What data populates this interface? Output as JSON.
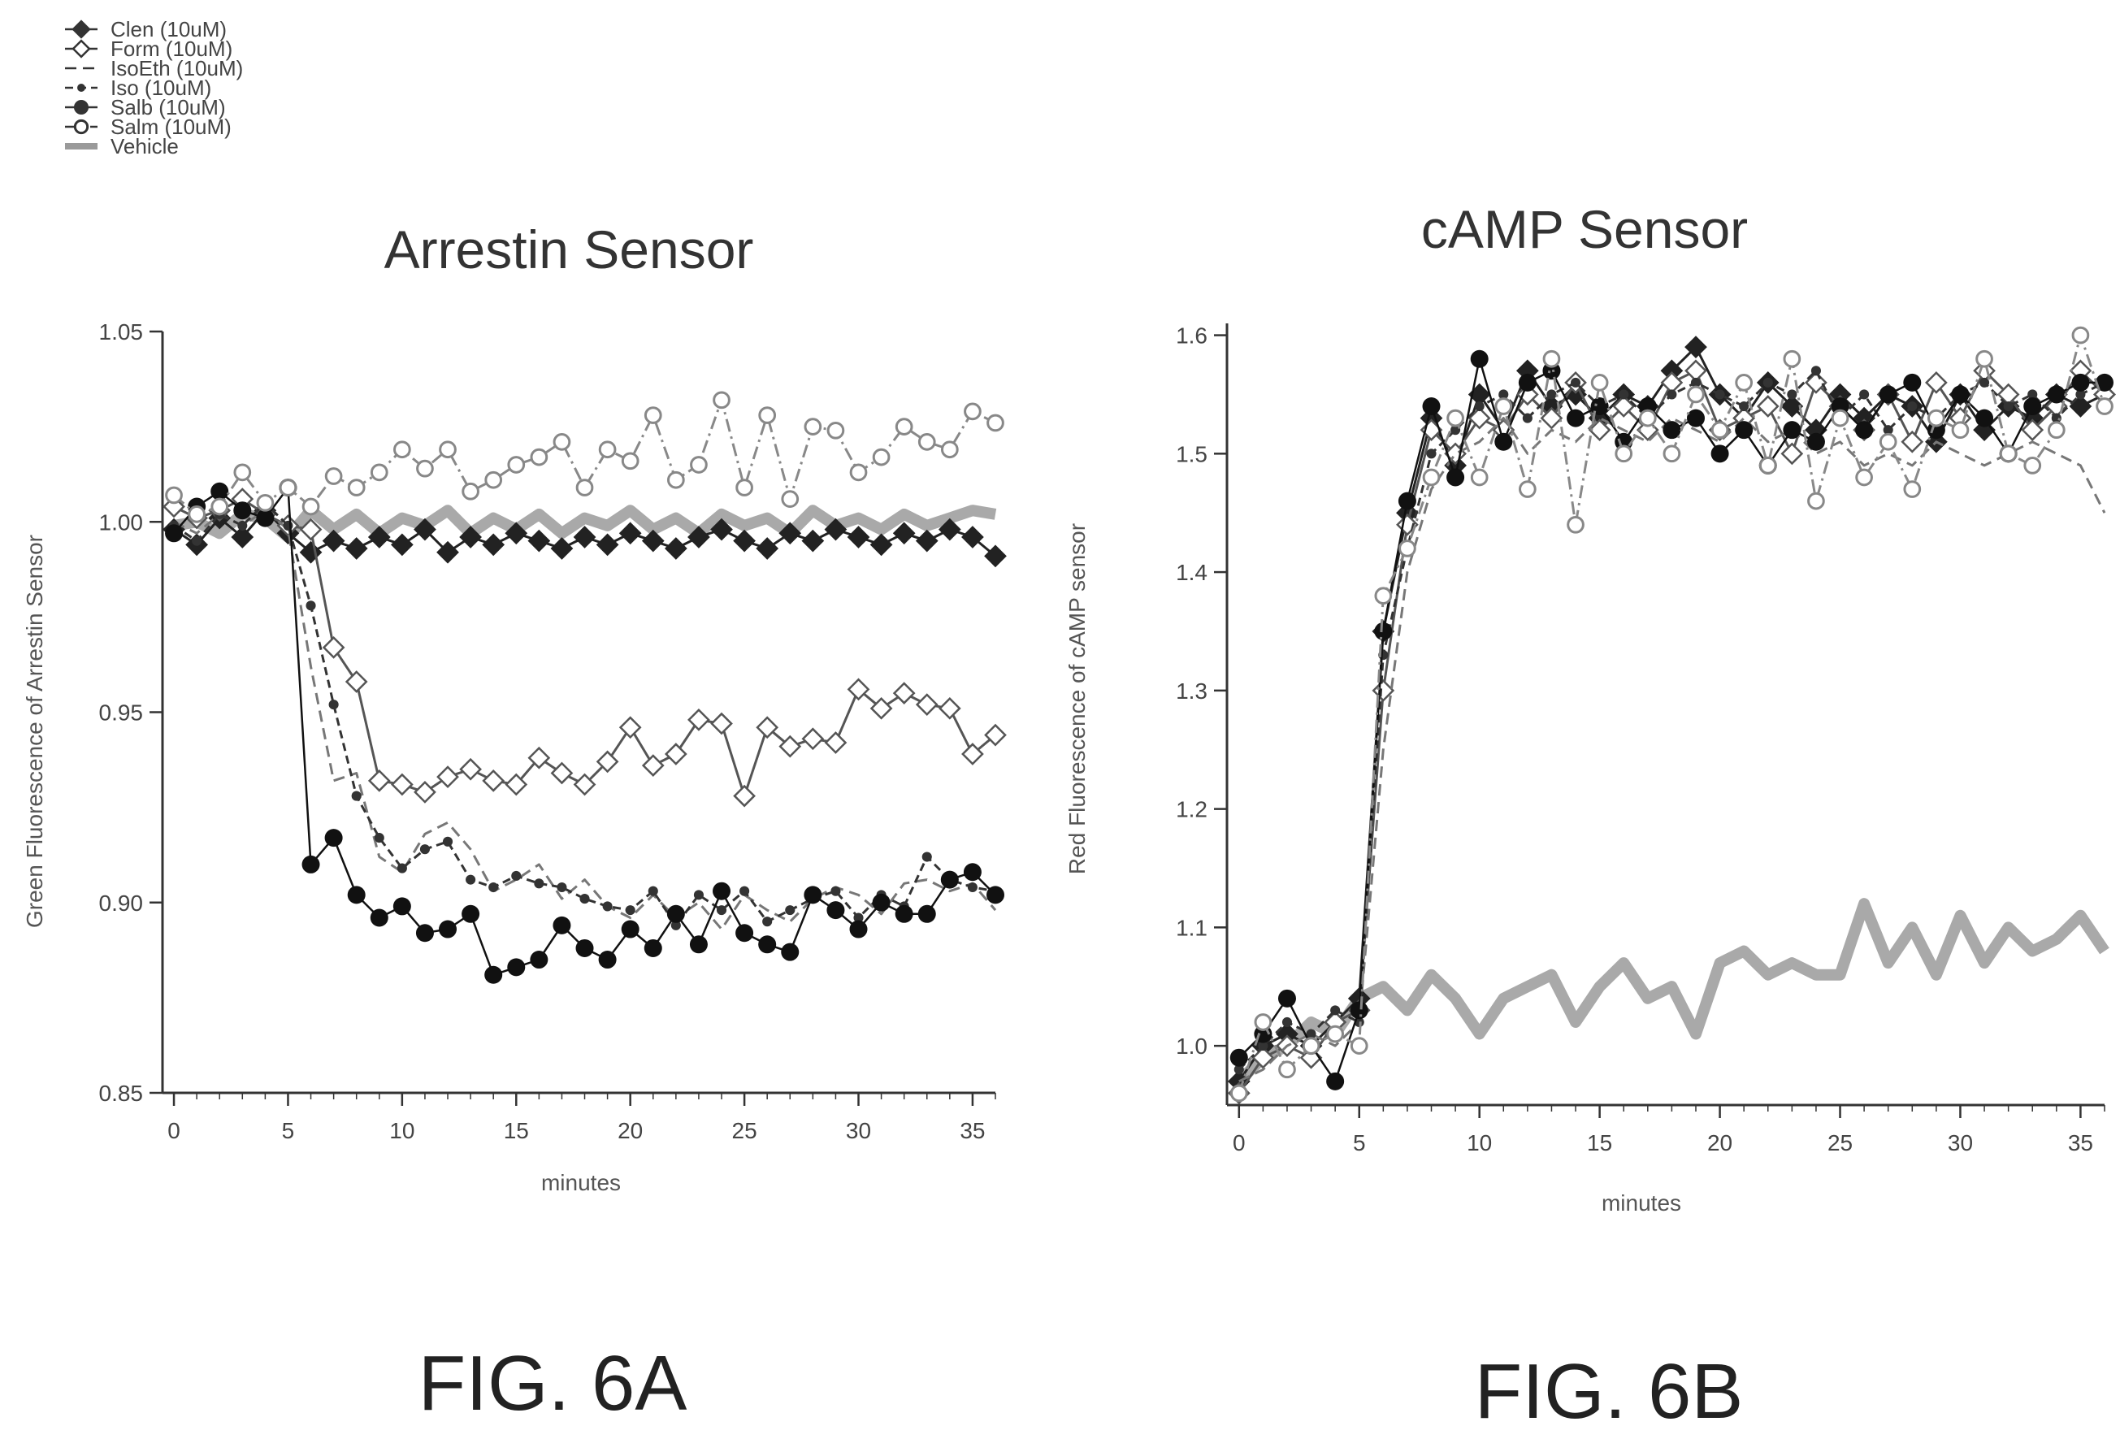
{
  "figure": {
    "caption_a": "FIG. 6A",
    "caption_b": "FIG. 6B"
  },
  "legend": {
    "items": [
      {
        "label": "Clen (10uM)",
        "marker": "diamond",
        "line": "solid"
      },
      {
        "label": "Form (10uM)",
        "marker": "open-diamond",
        "line": "solid"
      },
      {
        "label": "IsoEth (10uM)",
        "marker": "none",
        "line": "dash"
      },
      {
        "label": "Iso (10uM)",
        "marker": "small-circle",
        "line": "dash"
      },
      {
        "label": "Salb (10uM)",
        "marker": "filled-circle",
        "line": "solid"
      },
      {
        "label": "Salm (10uM)",
        "marker": "open-circle",
        "line": "dashdot"
      },
      {
        "label": "Vehicle",
        "marker": "none",
        "line": "thick"
      }
    ]
  },
  "chart_data": [
    {
      "type": "line",
      "title": "Arrestin Sensor",
      "xlabel": "minutes",
      "ylabel": "Green Fluorescence of Arrestin Sensor",
      "xlim": [
        -0.5,
        36
      ],
      "ylim": [
        0.85,
        1.05
      ],
      "xticks": [
        0,
        5,
        10,
        15,
        20,
        25,
        30,
        35
      ],
      "yticks": [
        0.85,
        0.9,
        0.95,
        1.0,
        1.05
      ],
      "ytick_labels": [
        "0.85",
        "0.90",
        "0.95",
        "1.00",
        "1.05"
      ],
      "grid": false,
      "legend_position": "top-left (above chart)",
      "x": [
        0,
        1,
        2,
        3,
        4,
        5,
        6,
        7,
        8,
        9,
        10,
        11,
        12,
        13,
        14,
        15,
        16,
        17,
        18,
        19,
        20,
        21,
        22,
        23,
        24,
        25,
        26,
        27,
        28,
        29,
        30,
        31,
        32,
        33,
        34,
        35,
        36
      ],
      "series": [
        {
          "name": "Clen (10uM)",
          "values": [
            0.998,
            0.994,
            1.001,
            0.996,
            1.003,
            0.997,
            0.992,
            0.995,
            0.993,
            0.996,
            0.994,
            0.998,
            0.992,
            0.996,
            0.994,
            0.997,
            0.995,
            0.993,
            0.996,
            0.994,
            0.997,
            0.995,
            0.993,
            0.996,
            0.998,
            0.995,
            0.993,
            0.997,
            0.995,
            0.998,
            0.996,
            0.994,
            0.997,
            0.995,
            0.998,
            0.996,
            0.991
          ]
        },
        {
          "name": "Form (10uM)",
          "values": [
            1.004,
            1.001,
            1.003,
            1.006,
            1.002,
            0.999,
            0.998,
            0.967,
            0.958,
            0.932,
            0.931,
            0.929,
            0.933,
            0.935,
            0.932,
            0.931,
            0.938,
            0.934,
            0.931,
            0.937,
            0.946,
            0.936,
            0.939,
            0.948,
            0.947,
            0.928,
            0.946,
            0.941,
            0.943,
            0.942,
            0.956,
            0.951,
            0.955,
            0.952,
            0.951,
            0.939,
            0.944
          ]
        },
        {
          "name": "IsoEth (10uM)",
          "values": [
            1.0,
            0.997,
            1.002,
            0.999,
            1.003,
            0.998,
            0.962,
            0.932,
            0.934,
            0.912,
            0.908,
            0.918,
            0.921,
            0.914,
            0.903,
            0.906,
            0.91,
            0.901,
            0.906,
            0.899,
            0.896,
            0.902,
            0.896,
            0.9,
            0.893,
            0.902,
            0.898,
            0.895,
            0.901,
            0.904,
            0.902,
            0.897,
            0.905,
            0.906,
            0.903,
            0.905,
            0.898
          ]
        },
        {
          "name": "Iso (10uM)",
          "values": [
            0.999,
            0.995,
            1.002,
            0.999,
            1.005,
            0.999,
            0.978,
            0.952,
            0.928,
            0.917,
            0.909,
            0.914,
            0.916,
            0.906,
            0.904,
            0.907,
            0.905,
            0.904,
            0.901,
            0.899,
            0.898,
            0.903,
            0.894,
            0.902,
            0.898,
            0.903,
            0.895,
            0.898,
            0.901,
            0.903,
            0.896,
            0.902,
            0.899,
            0.912,
            0.906,
            0.904,
            0.903
          ]
        },
        {
          "name": "Salb (10uM)",
          "values": [
            0.997,
            1.004,
            1.008,
            1.003,
            1.001,
            1.009,
            0.91,
            0.917,
            0.902,
            0.896,
            0.899,
            0.892,
            0.893,
            0.897,
            0.881,
            0.883,
            0.885,
            0.894,
            0.888,
            0.885,
            0.893,
            0.888,
            0.897,
            0.889,
            0.903,
            0.892,
            0.889,
            0.887,
            0.902,
            0.898,
            0.893,
            0.9,
            0.897,
            0.897,
            0.906,
            0.908,
            0.902
          ]
        },
        {
          "name": "Salm (10uM)",
          "values": [
            1.007,
            1.002,
            1.004,
            1.013,
            1.005,
            1.009,
            1.004,
            1.012,
            1.009,
            1.013,
            1.019,
            1.014,
            1.019,
            1.008,
            1.011,
            1.015,
            1.017,
            1.021,
            1.009,
            1.019,
            1.016,
            1.028,
            1.011,
            1.015,
            1.032,
            1.009,
            1.028,
            1.006,
            1.025,
            1.024,
            1.013,
            1.017,
            1.025,
            1.021,
            1.019,
            1.029,
            1.026
          ]
        },
        {
          "name": "Vehicle",
          "values": [
            0.999,
            1.0,
            0.997,
            1.002,
            1.001,
            0.996,
            1.003,
            0.998,
            1.002,
            0.997,
            1.001,
            0.999,
            1.003,
            0.997,
            1.001,
            0.998,
            1.002,
            0.997,
            1.001,
            0.999,
            1.003,
            0.998,
            1.001,
            0.997,
            1.002,
            0.999,
            1.001,
            0.997,
            1.003,
            0.999,
            1.001,
            0.998,
            1.002,
            0.999,
            1.001,
            1.003,
            1.002
          ]
        }
      ]
    },
    {
      "type": "line",
      "title": "cAMP Sensor",
      "xlabel": "minutes",
      "ylabel": "Red Fluorescence of cAMP sensor",
      "xlim": [
        -0.5,
        36
      ],
      "ylim": [
        0.95,
        1.61
      ],
      "xticks": [
        0,
        5,
        10,
        15,
        20,
        25,
        30,
        35
      ],
      "yticks": [
        1.0,
        1.1,
        1.2,
        1.3,
        1.4,
        1.5,
        1.6
      ],
      "ytick_labels": [
        "1.0",
        "1.1",
        "1.2",
        "1.3",
        "1.4",
        "1.5",
        "1.6"
      ],
      "grid": false,
      "x": [
        0,
        1,
        2,
        3,
        4,
        5,
        6,
        7,
        8,
        9,
        10,
        11,
        12,
        13,
        14,
        15,
        16,
        17,
        18,
        19,
        20,
        21,
        22,
        23,
        24,
        25,
        26,
        27,
        28,
        29,
        30,
        31,
        32,
        33,
        34,
        35,
        36
      ],
      "series": [
        {
          "name": "Clen (10uM)",
          "values": [
            0.97,
            1.0,
            1.01,
            1.0,
            1.02,
            1.04,
            1.35,
            1.45,
            1.53,
            1.49,
            1.55,
            1.52,
            1.57,
            1.54,
            1.55,
            1.53,
            1.55,
            1.54,
            1.57,
            1.59,
            1.55,
            1.53,
            1.56,
            1.54,
            1.52,
            1.55,
            1.53,
            1.55,
            1.54,
            1.51,
            1.55,
            1.52,
            1.54,
            1.53,
            1.55,
            1.54,
            1.55
          ]
        },
        {
          "name": "Form (10uM)",
          "values": [
            0.96,
            0.99,
            1.0,
            0.99,
            1.02,
            1.03,
            1.3,
            1.44,
            1.52,
            1.5,
            1.53,
            1.52,
            1.55,
            1.53,
            1.56,
            1.52,
            1.54,
            1.52,
            1.56,
            1.57,
            1.52,
            1.53,
            1.54,
            1.5,
            1.56,
            1.54,
            1.52,
            1.55,
            1.51,
            1.56,
            1.53,
            1.57,
            1.55,
            1.52,
            1.54,
            1.57,
            1.55
          ]
        },
        {
          "name": "IsoEth (10uM)",
          "values": [
            0.97,
            0.98,
            1.0,
            1.01,
            1.0,
            1.02,
            1.25,
            1.4,
            1.47,
            1.5,
            1.51,
            1.53,
            1.5,
            1.52,
            1.51,
            1.53,
            1.52,
            1.51,
            1.53,
            1.52,
            1.51,
            1.53,
            1.51,
            1.52,
            1.5,
            1.51,
            1.49,
            1.5,
            1.49,
            1.51,
            1.5,
            1.49,
            1.5,
            1.51,
            1.5,
            1.49,
            1.45
          ]
        },
        {
          "name": "Iso (10uM)",
          "values": [
            0.98,
            1.0,
            1.02,
            1.01,
            1.03,
            1.02,
            1.33,
            1.42,
            1.5,
            1.52,
            1.54,
            1.55,
            1.53,
            1.55,
            1.56,
            1.54,
            1.55,
            1.53,
            1.55,
            1.56,
            1.55,
            1.54,
            1.56,
            1.55,
            1.57,
            1.53,
            1.55,
            1.52,
            1.54,
            1.53,
            1.55,
            1.56,
            1.54,
            1.55,
            1.53,
            1.55,
            1.56
          ]
        },
        {
          "name": "Salb (10uM)",
          "values": [
            0.99,
            1.01,
            1.04,
            1.0,
            0.97,
            1.03,
            1.35,
            1.46,
            1.54,
            1.48,
            1.58,
            1.51,
            1.56,
            1.57,
            1.53,
            1.54,
            1.51,
            1.54,
            1.52,
            1.53,
            1.5,
            1.52,
            1.49,
            1.52,
            1.51,
            1.54,
            1.52,
            1.55,
            1.56,
            1.52,
            1.55,
            1.53,
            1.5,
            1.54,
            1.55,
            1.56,
            1.56
          ]
        },
        {
          "name": "Salm (10uM)",
          "values": [
            0.96,
            1.02,
            0.98,
            1.0,
            1.01,
            1.0,
            1.38,
            1.42,
            1.48,
            1.53,
            1.48,
            1.54,
            1.47,
            1.58,
            1.44,
            1.56,
            1.5,
            1.53,
            1.5,
            1.55,
            1.52,
            1.56,
            1.49,
            1.58,
            1.46,
            1.53,
            1.48,
            1.51,
            1.47,
            1.53,
            1.52,
            1.58,
            1.5,
            1.49,
            1.52,
            1.6,
            1.54
          ]
        },
        {
          "name": "Vehicle",
          "values": [
            0.97,
            0.99,
            1.0,
            1.02,
            1.01,
            1.04,
            1.05,
            1.03,
            1.06,
            1.04,
            1.01,
            1.04,
            1.05,
            1.06,
            1.02,
            1.05,
            1.07,
            1.04,
            1.05,
            1.01,
            1.07,
            1.08,
            1.06,
            1.07,
            1.06,
            1.06,
            1.12,
            1.07,
            1.1,
            1.06,
            1.11,
            1.07,
            1.1,
            1.08,
            1.09,
            1.11,
            1.08
          ]
        }
      ]
    }
  ],
  "style": {
    "ink": "#333333",
    "vehicle": "#9a9a9a",
    "series_colors": [
      "#222222",
      "#555555",
      "#777777",
      "#333333",
      "#111111",
      "#888888",
      "#9a9a9a"
    ]
  }
}
